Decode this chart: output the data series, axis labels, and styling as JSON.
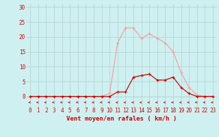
{
  "x": [
    0,
    1,
    2,
    3,
    4,
    5,
    6,
    7,
    8,
    9,
    10,
    11,
    12,
    13,
    14,
    15,
    16,
    17,
    18,
    19,
    20,
    21,
    22,
    23
  ],
  "y_rafales": [
    0,
    0,
    0,
    0,
    0,
    0,
    0,
    0,
    0,
    0,
    1,
    18,
    23,
    23,
    19.5,
    21,
    19.5,
    18,
    15,
    8,
    3,
    0.5,
    0,
    0
  ],
  "y_moyen": [
    0,
    0,
    0,
    0,
    0,
    0,
    0,
    0,
    0,
    0,
    0,
    1.5,
    1.5,
    6.5,
    7,
    7.5,
    5.5,
    5.5,
    6.5,
    3,
    1,
    0,
    0,
    0
  ],
  "color_rafales": "#f4a0a0",
  "color_moyen": "#cc0000",
  "color_arrows": "#cc0000",
  "bg_color": "#cff0f0",
  "grid_color": "#b8d8d8",
  "axis_color": "#cc0000",
  "xlabel": "Vent moyen/en rafales ( km/h )",
  "yticks": [
    0,
    5,
    10,
    15,
    20,
    25,
    30
  ],
  "xticks": [
    0,
    1,
    2,
    3,
    4,
    5,
    6,
    7,
    8,
    9,
    10,
    11,
    12,
    13,
    14,
    15,
    16,
    17,
    18,
    19,
    20,
    21,
    22,
    23
  ],
  "ylim": [
    -3.5,
    31
  ],
  "xlim": [
    -0.5,
    23.5
  ]
}
